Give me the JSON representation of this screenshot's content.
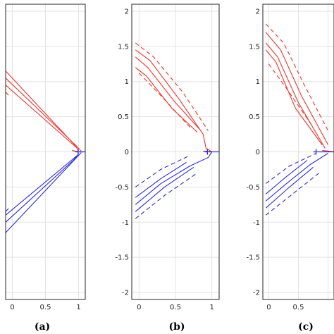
{
  "colors": {
    "red_series": "#e8352e",
    "blue_series": "#2b2bd1",
    "grid": "#e3e3e3",
    "axis": "#262626"
  },
  "chart_data": [
    {
      "type": "line",
      "caption": "(a)",
      "xlim": [
        -0.1,
        1.1
      ],
      "ylim": [
        -2.1,
        2.1
      ],
      "xticks": [
        "0",
        "0.5",
        "1"
      ],
      "yticks": [],
      "grid": true,
      "red_solid": [
        [
          [
            -0.1,
            1.15
          ],
          [
            0.92,
            0.12
          ],
          [
            1.0,
            0.02
          ]
        ],
        [
          [
            -0.1,
            1.05
          ],
          [
            0.96,
            0.09
          ],
          [
            1.04,
            0.01
          ]
        ],
        [
          [
            -0.1,
            0.95
          ],
          [
            0.98,
            0.05
          ]
        ]
      ],
      "red_dashed": [
        [
          [
            -0.1,
            0.85
          ],
          [
            -0.05,
            0.8
          ]
        ]
      ],
      "red_arrow": [
        [
          0.9,
          0.02
        ],
        [
          1.0,
          0.0
        ]
      ],
      "blue_solid": [
        [
          [
            -0.1,
            -1.0
          ],
          [
            0.92,
            -0.12
          ],
          [
            1.0,
            -0.03
          ]
        ],
        [
          [
            -0.1,
            -1.15
          ],
          [
            0.96,
            -0.09
          ],
          [
            1.04,
            -0.01
          ]
        ],
        [
          [
            -0.1,
            -0.9
          ],
          [
            0.98,
            -0.05
          ]
        ]
      ],
      "blue_dashed": [
        [
          [
            -0.1,
            -0.85
          ],
          [
            -0.05,
            -0.8
          ]
        ]
      ],
      "blue_marker": [
        [
          0.95,
          0.0
        ],
        [
          1.1,
          0.0
        ]
      ]
    },
    {
      "type": "line",
      "caption": "(b)",
      "xlim": [
        -0.1,
        1.1
      ],
      "ylim": [
        -2.1,
        2.1
      ],
      "xticks": [
        "0",
        "0.5",
        "1"
      ],
      "yticks": [
        "2",
        "1.5",
        "1",
        "0.5",
        "0",
        "-0.5",
        "-1",
        "-1.5",
        "-2"
      ],
      "grid": true,
      "red_solid": [
        [
          [
            -0.05,
            1.45
          ],
          [
            0.15,
            1.3
          ],
          [
            0.55,
            0.75
          ],
          [
            0.88,
            0.25
          ],
          [
            0.92,
            0.05
          ],
          [
            1.0,
            0.0
          ]
        ],
        [
          [
            -0.05,
            1.35
          ],
          [
            0.12,
            1.2
          ],
          [
            0.5,
            0.7
          ],
          [
            0.85,
            0.3
          ]
        ],
        [
          [
            -0.05,
            1.2
          ],
          [
            0.1,
            1.08
          ],
          [
            0.45,
            0.62
          ],
          [
            0.8,
            0.28
          ]
        ]
      ],
      "red_dashed": [
        [
          [
            -0.05,
            1.55
          ],
          [
            0.2,
            1.35
          ],
          [
            0.6,
            0.85
          ],
          [
            0.95,
            0.3
          ]
        ],
        [
          [
            0.0,
            1.12
          ],
          [
            0.3,
            0.8
          ],
          [
            0.7,
            0.35
          ]
        ]
      ],
      "red_arrow": [
        [
          0.88,
          0.01
        ],
        [
          1.0,
          0.0
        ]
      ],
      "blue_solid": [
        [
          [
            -0.05,
            -0.75
          ],
          [
            0.3,
            -0.45
          ],
          [
            0.7,
            -0.2
          ],
          [
            0.95,
            -0.08
          ],
          [
            1.0,
            0.0
          ]
        ],
        [
          [
            -0.05,
            -0.85
          ],
          [
            0.35,
            -0.5
          ],
          [
            0.75,
            -0.22
          ]
        ],
        [
          [
            -0.05,
            -0.65
          ],
          [
            0.3,
            -0.38
          ],
          [
            0.65,
            -0.15
          ]
        ]
      ],
      "blue_dashed": [
        [
          [
            -0.05,
            -0.5
          ],
          [
            0.3,
            -0.25
          ],
          [
            0.7,
            -0.05
          ]
        ],
        [
          [
            -0.05,
            -0.95
          ],
          [
            0.35,
            -0.62
          ],
          [
            0.8,
            -0.3
          ]
        ]
      ],
      "blue_marker": [
        [
          0.9,
          0.0
        ],
        [
          1.1,
          0.0
        ]
      ]
    },
    {
      "type": "line",
      "caption": "(c)",
      "xlim": [
        -0.1,
        1.1
      ],
      "ylim": [
        -2.1,
        2.1
      ],
      "xticks": [
        "0",
        "0.5"
      ],
      "yticks": [
        "2",
        "1.5",
        "1",
        "0.5",
        "0",
        "-0.5",
        "-1",
        "-1.5",
        "-2"
      ],
      "grid": true,
      "red_solid": [
        [
          [
            -0.05,
            1.7
          ],
          [
            0.2,
            1.45
          ],
          [
            0.55,
            0.8
          ],
          [
            1.0,
            0.1
          ]
        ],
        [
          [
            -0.05,
            1.55
          ],
          [
            0.15,
            1.35
          ],
          [
            0.5,
            0.7
          ],
          [
            0.95,
            0.05
          ]
        ],
        [
          [
            -0.05,
            1.45
          ],
          [
            0.12,
            1.28
          ],
          [
            0.45,
            0.62
          ],
          [
            0.9,
            0.1
          ]
        ]
      ],
      "red_dashed": [
        [
          [
            -0.05,
            1.82
          ],
          [
            0.25,
            1.55
          ],
          [
            0.6,
            0.95
          ],
          [
            1.0,
            0.3
          ]
        ],
        [
          [
            0.0,
            1.25
          ],
          [
            0.3,
            0.9
          ],
          [
            0.75,
            0.35
          ]
        ]
      ],
      "red_arrow": [
        [
          0.9,
          0.02
        ],
        [
          1.1,
          0.0
        ]
      ],
      "blue_solid": [
        [
          [
            -0.05,
            -0.7
          ],
          [
            0.3,
            -0.45
          ],
          [
            0.7,
            -0.18
          ],
          [
            1.0,
            -0.02
          ]
        ],
        [
          [
            -0.05,
            -0.8
          ],
          [
            0.35,
            -0.5
          ],
          [
            0.75,
            -0.22
          ]
        ],
        [
          [
            -0.05,
            -0.6
          ],
          [
            0.3,
            -0.35
          ],
          [
            0.65,
            -0.12
          ]
        ]
      ],
      "blue_dashed": [
        [
          [
            -0.05,
            -0.45
          ],
          [
            0.35,
            -0.2
          ],
          [
            0.8,
            -0.02
          ]
        ],
        [
          [
            -0.05,
            -0.9
          ],
          [
            0.4,
            -0.6
          ],
          [
            0.85,
            -0.3
          ]
        ]
      ],
      "blue_marker": [
        [
          0.75,
          0.0
        ],
        [
          1.1,
          0.0
        ]
      ]
    }
  ]
}
